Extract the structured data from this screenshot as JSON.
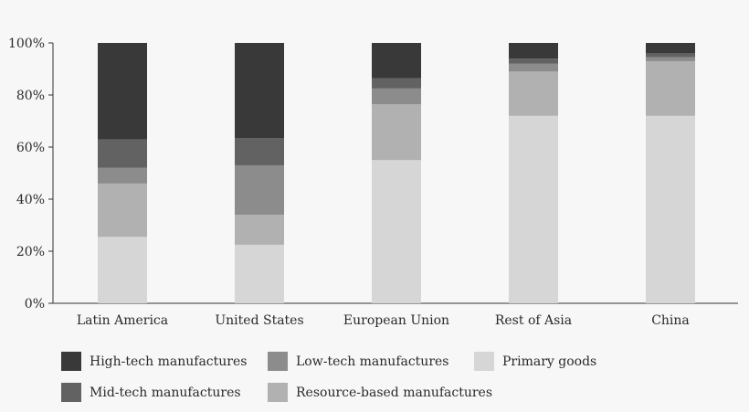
{
  "chart_data": {
    "type": "bar",
    "stacked": true,
    "categories": [
      "Latin America",
      "United States",
      "European Union",
      "Rest of Asia",
      "China"
    ],
    "ylim": [
      0,
      100
    ],
    "yticks": [
      "0%",
      "20%",
      "40%",
      "60%",
      "80%",
      "100%"
    ],
    "ytick_values": [
      0,
      20,
      40,
      60,
      80,
      100
    ],
    "grid": false,
    "legend_position": "bottom",
    "series": [
      {
        "name": "Primary goods",
        "color": "#d6d6d6",
        "values": [
          25.5,
          22.5,
          55,
          72,
          72
        ]
      },
      {
        "name": "Resource-based manufactures",
        "color": "#b1b1b1",
        "values": [
          20.5,
          11.5,
          21.5,
          17,
          21
        ]
      },
      {
        "name": "Low-tech manufactures",
        "color": "#8c8c8c",
        "values": [
          6,
          19,
          6,
          3,
          1.5
        ]
      },
      {
        "name": "Mid-tech manufactures",
        "color": "#626262",
        "values": [
          11,
          10.5,
          4,
          2,
          1.5
        ]
      },
      {
        "name": "High-tech manufactures",
        "color": "#393939",
        "values": [
          37,
          36.5,
          13.5,
          6,
          4
        ]
      }
    ],
    "legend_order": [
      "High-tech manufactures",
      "Mid-tech manufactures",
      "Low-tech manufactures",
      "Resource-based manufactures",
      "Primary goods"
    ]
  }
}
